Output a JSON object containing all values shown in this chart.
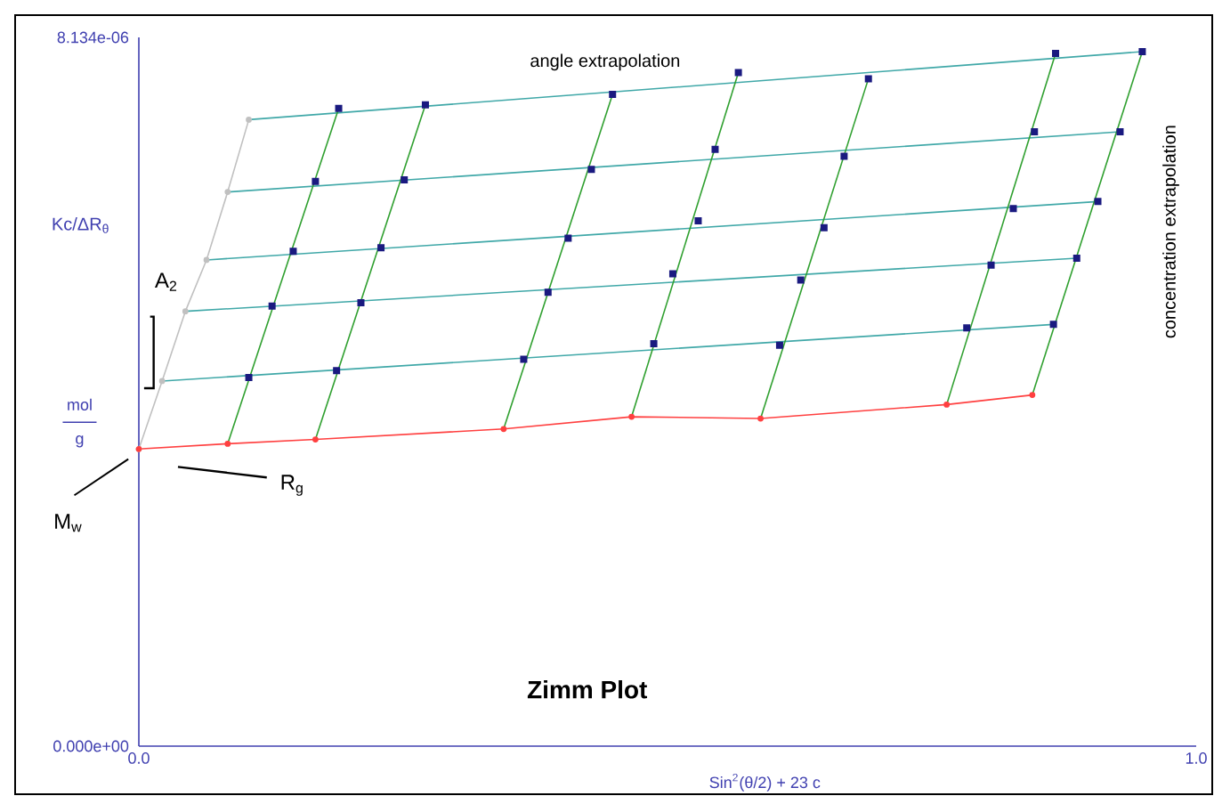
{
  "chart_data": {
    "type": "line",
    "title": "Zimm Plot",
    "xlabel": "Sin$^{2}$(θ/2) + 23 c",
    "ylabel": "Kc/ΔR$_{θ}$",
    "xlim": [
      0,
      1.0
    ],
    "ylim": [
      0,
      8.134e-06
    ],
    "xticks": [
      {
        "value": 0,
        "label": "0.0"
      },
      {
        "value": 1.0,
        "label": "1.0"
      }
    ],
    "yticks": [
      {
        "value": 0,
        "label": "0.000e+00"
      },
      {
        "value": 8.134e-06,
        "label": "8.134e-06"
      }
    ],
    "grid": false,
    "annotations": [
      "angle extrapolation",
      "concentration extrapolation",
      "A$_{2}$",
      "mol",
      "g",
      "M$_{w}$",
      "R$_{g}$"
    ],
    "series": [
      {
        "color": "#c0c0c0",
        "marker": "circle",
        "x": [
          0,
          0.022,
          0.044,
          0.064,
          0.084,
          0.104
        ],
        "values": [
          3.41e-06,
          4.19e-06,
          4.99e-06,
          5.58e-06,
          6.36e-06,
          7.19e-06
        ]
      },
      {
        "type": "line",
        "color": "#40a8a8",
        "marker": "none",
        "x": [
          0.104,
          0.949
        ],
        "values": [
          7.19e-06,
          7.97e-06
        ]
      },
      {
        "type": "line",
        "color": "#40a8a8",
        "marker": "none",
        "x": [
          0.084,
          0.928
        ],
        "values": [
          6.36e-06,
          7.05e-06
        ]
      },
      {
        "type": "line",
        "color": "#40a8a8",
        "marker": "none",
        "x": [
          0.064,
          0.907
        ],
        "values": [
          5.58e-06,
          6.25e-06
        ]
      },
      {
        "type": "line",
        "color": "#40a8a8",
        "marker": "none",
        "x": [
          0.044,
          0.887
        ],
        "values": [
          4.99e-06,
          5.6e-06
        ]
      },
      {
        "type": "line",
        "color": "#40a8a8",
        "marker": "none",
        "x": [
          0.022,
          0.865
        ],
        "values": [
          4.19e-06,
          4.84e-06
        ]
      },
      {
        "type": "line",
        "color": "#30a030",
        "marker": "none",
        "x": [
          0.084,
          0.189
        ],
        "values": [
          3.47e-06,
          7.32e-06
        ]
      },
      {
        "type": "line",
        "color": "#30a030",
        "marker": "none",
        "x": [
          0.167,
          0.271
        ],
        "values": [
          3.52e-06,
          7.36e-06
        ]
      },
      {
        "type": "line",
        "color": "#30a030",
        "marker": "none",
        "x": [
          0.345,
          0.448
        ],
        "values": [
          3.64e-06,
          7.48e-06
        ]
      },
      {
        "type": "line",
        "color": "#30a030",
        "marker": "none",
        "x": [
          0.466,
          0.567
        ],
        "values": [
          3.78e-06,
          7.73e-06
        ]
      },
      {
        "type": "line",
        "color": "#30a030",
        "marker": "none",
        "x": [
          0.588,
          0.69
        ],
        "values": [
          3.76e-06,
          7.66e-06
        ]
      },
      {
        "type": "line",
        "color": "#30a030",
        "marker": "none",
        "x": [
          0.764,
          0.867
        ],
        "values": [
          3.92e-06,
          7.95e-06
        ]
      },
      {
        "type": "line",
        "color": "#30a030",
        "marker": "none",
        "x": [
          0.845,
          0.949
        ],
        "values": [
          4.03e-06,
          7.97e-06
        ]
      },
      {
        "color": "#ff4040",
        "marker": "circle",
        "x": [
          0,
          0.084,
          0.167,
          0.345,
          0.466,
          0.588,
          0.764,
          0.845
        ],
        "values": [
          3.41e-06,
          3.47e-06,
          3.52e-06,
          3.64e-06,
          3.78e-06,
          3.76e-06,
          3.92e-06,
          4.03e-06
        ]
      },
      {
        "type": "scatter",
        "color": "#1a1a80",
        "marker": "square",
        "x": [
          0.189,
          0.271,
          0.448,
          0.567,
          0.69,
          0.867,
          0.949,
          0.167,
          0.251,
          0.428,
          0.545,
          0.667,
          0.847,
          0.928,
          0.146,
          0.229,
          0.406,
          0.529,
          0.648,
          0.827,
          0.907,
          0.126,
          0.21,
          0.387,
          0.505,
          0.626,
          0.806,
          0.887,
          0.104,
          0.187,
          0.364,
          0.487,
          0.606,
          0.783,
          0.865
        ],
        "values": [
          7.32e-06,
          7.36e-06,
          7.48e-06,
          7.73e-06,
          7.66e-06,
          7.95e-06,
          7.97e-06,
          6.48e-06,
          6.5e-06,
          6.62e-06,
          6.85e-06,
          6.77e-06,
          7.05e-06,
          7.05e-06,
          5.68e-06,
          5.72e-06,
          5.83e-06,
          6.03e-06,
          5.95e-06,
          6.17e-06,
          6.25e-06,
          5.05e-06,
          5.09e-06,
          5.21e-06,
          5.42e-06,
          5.35e-06,
          5.52e-06,
          5.6e-06,
          4.23e-06,
          4.31e-06,
          4.44e-06,
          4.62e-06,
          4.6e-06,
          4.8e-06,
          4.84e-06
        ]
      }
    ]
  }
}
